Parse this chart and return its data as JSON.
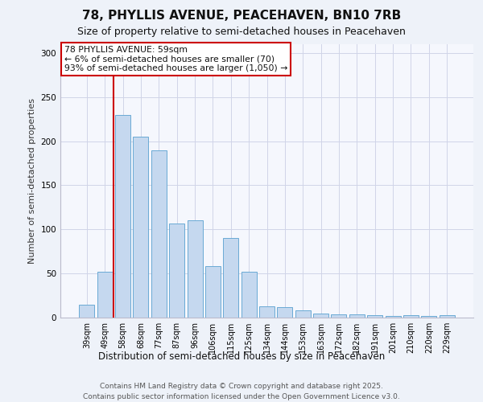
{
  "title1": "78, PHYLLIS AVENUE, PEACEHAVEN, BN10 7RB",
  "title2": "Size of property relative to semi-detached houses in Peacehaven",
  "xlabel": "Distribution of semi-detached houses by size in Peacehaven",
  "ylabel": "Number of semi-detached properties",
  "categories": [
    "39sqm",
    "49sqm",
    "58sqm",
    "68sqm",
    "77sqm",
    "87sqm",
    "96sqm",
    "106sqm",
    "115sqm",
    "125sqm",
    "134sqm",
    "144sqm",
    "153sqm",
    "163sqm",
    "172sqm",
    "182sqm",
    "191sqm",
    "201sqm",
    "210sqm",
    "220sqm",
    "229sqm"
  ],
  "values": [
    15,
    52,
    230,
    205,
    190,
    107,
    110,
    58,
    90,
    52,
    13,
    12,
    8,
    5,
    4,
    4,
    3,
    2,
    3,
    2,
    3
  ],
  "bar_color": "#c5d8ef",
  "bar_edge_color": "#6aaad4",
  "vline_index": 1.5,
  "annotation_title": "78 PHYLLIS AVENUE: 59sqm",
  "annotation_line1": "← 6% of semi-detached houses are smaller (70)",
  "annotation_line2": "93% of semi-detached houses are larger (1,050) →",
  "annotation_box_color": "#ffffff",
  "annotation_box_edge": "#cc0000",
  "vline_color": "#cc0000",
  "ylim": [
    0,
    310
  ],
  "yticks": [
    0,
    50,
    100,
    150,
    200,
    250,
    300
  ],
  "footer1": "Contains HM Land Registry data © Crown copyright and database right 2025.",
  "footer2": "Contains public sector information licensed under the Open Government Licence v3.0.",
  "bg_color": "#eef2f9",
  "plot_bg_color": "#f5f7fd",
  "grid_color": "#d0d4e8",
  "title1_fontsize": 11,
  "title2_fontsize": 9,
  "ylabel_fontsize": 8,
  "xlabel_fontsize": 8.5,
  "tick_fontsize": 7,
  "footer_fontsize": 6.5
}
